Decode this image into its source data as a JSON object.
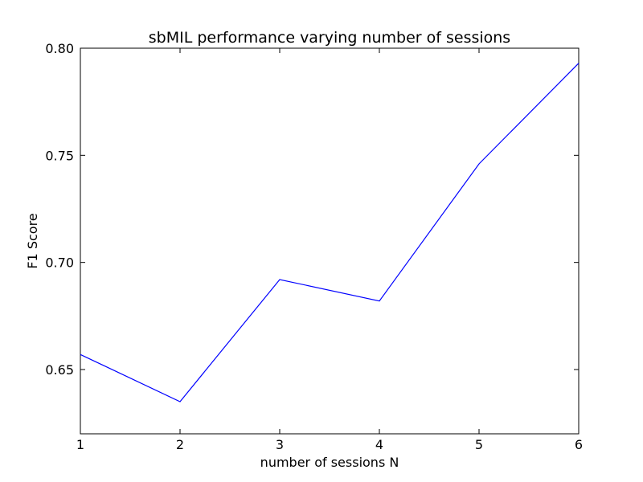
{
  "chart_data": {
    "type": "line",
    "title": "sbMIL performance varying number of sessions",
    "xlabel": "number of sessions N",
    "ylabel": "F1 Score",
    "xlim": [
      1,
      6
    ],
    "ylim": [
      0.62,
      0.8
    ],
    "x_ticks": [
      1,
      2,
      3,
      4,
      5,
      6
    ],
    "x_tick_labels": [
      "1",
      "2",
      "3",
      "4",
      "5",
      "6"
    ],
    "y_ticks": [
      0.65,
      0.7,
      0.75,
      0.8
    ],
    "y_tick_labels": [
      "0.65",
      "0.70",
      "0.75",
      "0.80"
    ],
    "grid": false,
    "legend": "none",
    "series": [
      {
        "color": "#0000ff",
        "x": [
          1,
          2,
          3,
          4,
          5,
          6
        ],
        "y": [
          0.657,
          0.635,
          0.692,
          0.682,
          0.746,
          0.793
        ]
      }
    ]
  }
}
